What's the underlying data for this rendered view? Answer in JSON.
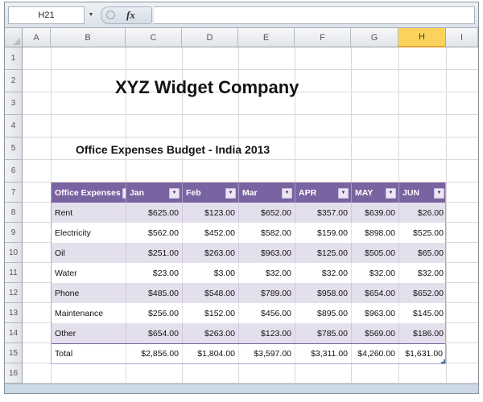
{
  "formula_bar": {
    "name_box_value": "H21",
    "fx_label": "fx",
    "formula_value": ""
  },
  "grid": {
    "columns": [
      "A",
      "B",
      "C",
      "D",
      "E",
      "F",
      "G",
      "H",
      "I"
    ],
    "selected_column": "H",
    "rows": [
      "1",
      "2",
      "3",
      "4",
      "5",
      "6",
      "7",
      "8",
      "9",
      "10",
      "11",
      "12",
      "13",
      "14",
      "15",
      "16"
    ]
  },
  "content": {
    "title": "XYZ Widget Company",
    "subtitle": "Office Expenses Budget - India 2013"
  },
  "table": {
    "headers": [
      "Office Expenses",
      "Jan",
      "Feb",
      "Mar",
      "APR",
      "MAY",
      "JUN"
    ],
    "rows": [
      [
        "Rent",
        "$625.00",
        "$123.00",
        "$652.00",
        "$357.00",
        "$639.00",
        "$26.00"
      ],
      [
        "Electricity",
        "$562.00",
        "$452.00",
        "$582.00",
        "$159.00",
        "$898.00",
        "$525.00"
      ],
      [
        "Oil",
        "$251.00",
        "$263.00",
        "$963.00",
        "$125.00",
        "$505.00",
        "$65.00"
      ],
      [
        "Water",
        "$23.00",
        "$3.00",
        "$32.00",
        "$32.00",
        "$32.00",
        "$32.00"
      ],
      [
        "Phone",
        "$485.00",
        "$548.00",
        "$789.00",
        "$958.00",
        "$654.00",
        "$652.00"
      ],
      [
        "Maintenance",
        "$256.00",
        "$152.00",
        "$456.00",
        "$895.00",
        "$963.00",
        "$145.00"
      ],
      [
        "Other",
        "$654.00",
        "$263.00",
        "$123.00",
        "$785.00",
        "$569.00",
        "$186.00"
      ],
      [
        "Total",
        "$2,856.00",
        "$1,804.00",
        "$3,597.00",
        "$3,311.00",
        "$4,260.00",
        "$1,631.00"
      ]
    ]
  },
  "colors": {
    "table_header_purple": "#7A63A1",
    "band_row_lavender": "#E4DFEC",
    "selected_column_fill": "#FBD35C"
  }
}
